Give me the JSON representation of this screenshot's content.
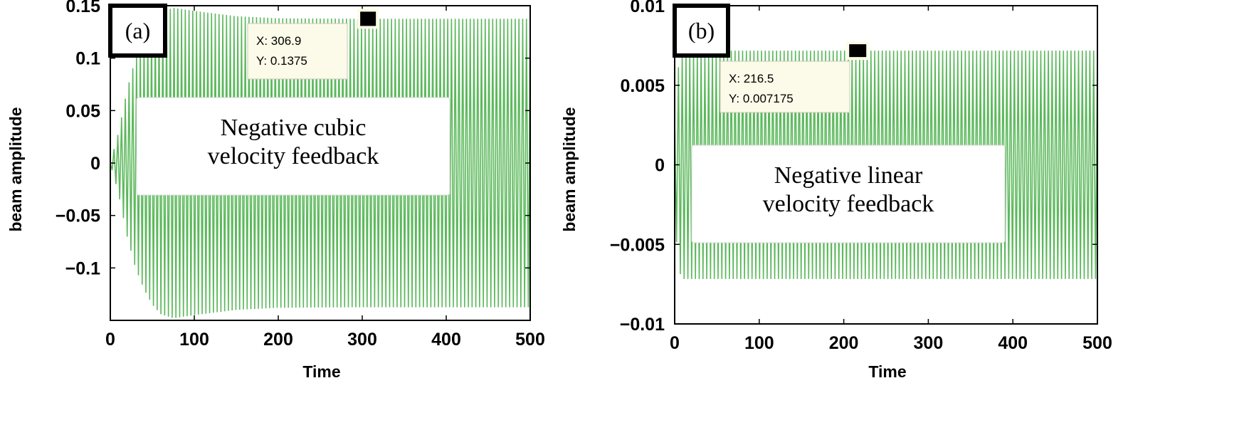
{
  "chart_data": [
    {
      "type": "line",
      "panel_label": "(a)",
      "xlabel": "Time",
      "ylabel": "beam amplitude",
      "xlim": [
        0,
        500
      ],
      "ylim": [
        -0.15,
        0.15
      ],
      "xticks": [
        0,
        100,
        200,
        300,
        400,
        500
      ],
      "xtick_labels": [
        "0",
        "100",
        "200",
        "300",
        "400",
        "500"
      ],
      "yticks": [
        0.15,
        0.1,
        0.05,
        0,
        -0.05,
        -0.1
      ],
      "ytick_labels": [
        "0.15",
        "0.1",
        "0.05",
        "0",
        "−0.05",
        "−0.1"
      ],
      "series_color": "#5cb85c",
      "oscillation": {
        "periods": 112,
        "initial_amplitude": 0,
        "peak_amplitude": 0.148,
        "peak_time": 75,
        "steady_amplitude": 0.1375
      },
      "envelope": [
        {
          "x": 0,
          "y": 0.0
        },
        {
          "x": 10,
          "y": 0.03
        },
        {
          "x": 20,
          "y": 0.07
        },
        {
          "x": 30,
          "y": 0.1
        },
        {
          "x": 40,
          "y": 0.12
        },
        {
          "x": 50,
          "y": 0.135
        },
        {
          "x": 60,
          "y": 0.144
        },
        {
          "x": 75,
          "y": 0.148
        },
        {
          "x": 100,
          "y": 0.145
        },
        {
          "x": 150,
          "y": 0.14
        },
        {
          "x": 200,
          "y": 0.138
        },
        {
          "x": 300,
          "y": 0.1375
        },
        {
          "x": 500,
          "y": 0.1375
        }
      ],
      "annotation": {
        "lines": [
          "Negative cubic",
          "velocity feedback"
        ]
      },
      "datatip": {
        "x": 306.9,
        "y": 0.1375,
        "x_text": "X: 306.9",
        "y_text": "Y: 0.1375"
      }
    },
    {
      "type": "line",
      "panel_label": "(b)",
      "xlabel": "Time",
      "ylabel": "beam amplitude",
      "xlim": [
        0,
        500
      ],
      "ylim": [
        -0.01,
        0.01
      ],
      "xticks": [
        0,
        100,
        200,
        300,
        400,
        500
      ],
      "xtick_labels": [
        "0",
        "100",
        "200",
        "300",
        "400",
        "500"
      ],
      "yticks": [
        0.01,
        0.005,
        0,
        -0.005,
        -0.01
      ],
      "ytick_labels": [
        "0.01",
        "0.005",
        "0",
        "−0.005",
        "−0.01"
      ],
      "series_color": "#5cb85c",
      "oscillation": {
        "periods": 112,
        "initial_amplitude": 0.003,
        "steady_amplitude": 0.007175
      },
      "envelope": [
        {
          "x": 0,
          "y": 0.003
        },
        {
          "x": 3,
          "y": 0.0055
        },
        {
          "x": 6,
          "y": 0.0068
        },
        {
          "x": 10,
          "y": 0.007175
        },
        {
          "x": 500,
          "y": 0.007175
        }
      ],
      "annotation": {
        "lines": [
          "Negative linear",
          "velocity feedback"
        ]
      },
      "datatip": {
        "x": 216.5,
        "y": 0.007175,
        "x_text": "X: 216.5",
        "y_text": "Y: 0.007175"
      }
    }
  ]
}
